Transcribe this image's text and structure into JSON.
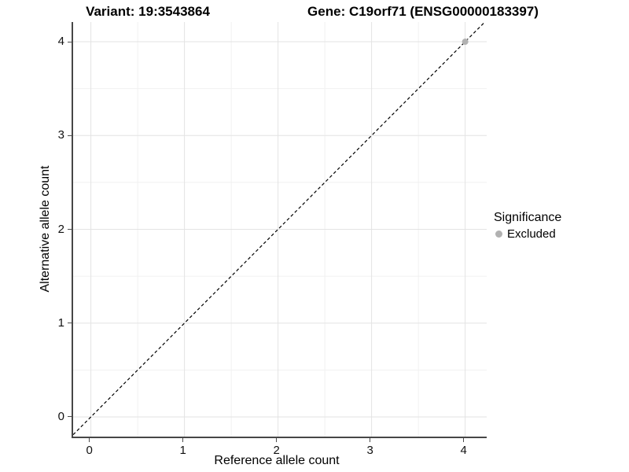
{
  "chart_data": {
    "type": "scatter",
    "titles": {
      "left": "Variant: 19:3543864",
      "right": "Gene: C19orf71 (ENSG00000183397)"
    },
    "xlabel": "Reference allele count",
    "ylabel": "Alternative allele count",
    "xlim": [
      -0.19,
      4.23
    ],
    "ylim": [
      -0.21,
      4.21
    ],
    "xticks": [
      0,
      1,
      2,
      3,
      4
    ],
    "yticks": [
      0,
      1,
      2,
      3,
      4
    ],
    "xticks_minor": [
      0.5,
      1.5,
      2.5,
      3.5
    ],
    "yticks_minor": [
      0.5,
      1.5,
      2.5,
      3.5
    ],
    "grid": "major+minor",
    "reference_line": {
      "kind": "identity",
      "style": "dashed",
      "color": "#000000"
    },
    "series": [
      {
        "name": "Excluded",
        "color": "#b1b1b1",
        "points": [
          [
            4,
            4
          ]
        ]
      }
    ],
    "legend": {
      "title": "Significance",
      "position": "right",
      "items": [
        {
          "label": "Excluded",
          "color": "#b1b1b1"
        }
      ]
    }
  },
  "style_colors": {
    "grid_major": "#e3e3e3",
    "grid_minor": "#f1f1f1",
    "axis_line": "#474747",
    "tick_mark": "#4d4d4d",
    "point_gray": "#b1b1b1"
  }
}
